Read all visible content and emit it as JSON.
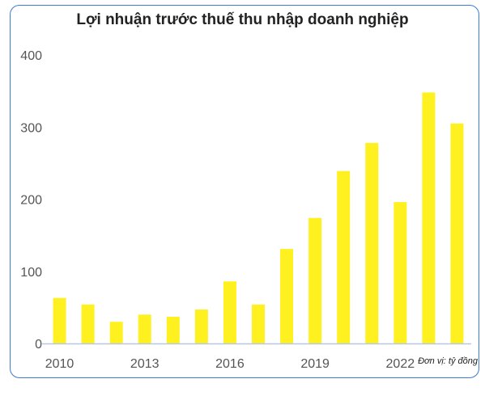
{
  "chart_data": {
    "type": "bar",
    "title": "Lợi nhuận trước thuế thu nhập doanh nghiệp",
    "unit_note": "Đơn vị: tỷ đồng",
    "categories": [
      "2010",
      "2011",
      "2012",
      "2013",
      "2014",
      "2015",
      "2016",
      "2017",
      "2018",
      "2019",
      "2020",
      "2021",
      "2022",
      "2023",
      "2024"
    ],
    "values": [
      63,
      54,
      30,
      40,
      37,
      47,
      86,
      54,
      131,
      174,
      239,
      278,
      196,
      348,
      305
    ],
    "x_tick_labels": [
      "2010",
      "2013",
      "2016",
      "2019",
      "2022"
    ],
    "y_tick_labels": [
      "0",
      "100",
      "200",
      "300",
      "400"
    ],
    "ylim": [
      0,
      400
    ],
    "bar_color": "#fff01f",
    "axis_color": "#b8c8e0",
    "grid": false
  }
}
